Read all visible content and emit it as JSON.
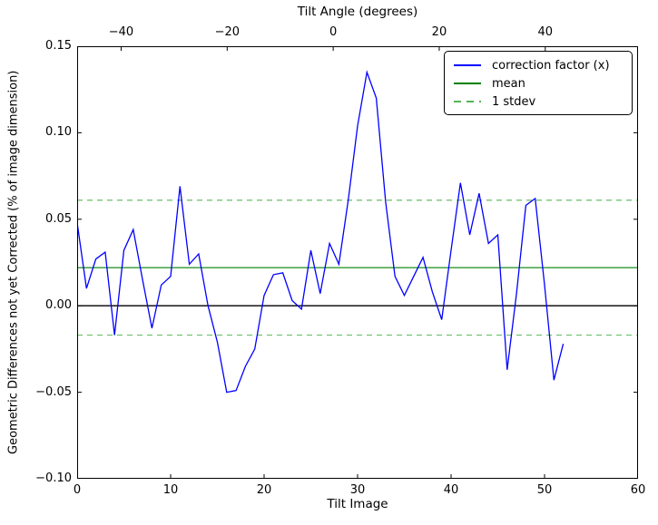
{
  "chart_data": {
    "type": "line",
    "xlabel": "Tilt Image",
    "ylabel": "Geometric Differences not yet Corrected (% of image dimension)",
    "top_xlabel": "Tilt Angle (degrees)",
    "xlim": [
      0,
      60
    ],
    "ylim": [
      -0.1,
      0.15
    ],
    "top_xlim": [
      -48.3,
      57.5
    ],
    "x_ticks": [
      0,
      10,
      20,
      30,
      40,
      50,
      60
    ],
    "x_tick_labels": [
      "0",
      "10",
      "20",
      "30",
      "40",
      "50",
      "60"
    ],
    "y_ticks": [
      0.15,
      0.1,
      0.05,
      0.0,
      -0.05,
      -0.1
    ],
    "y_tick_labels": [
      "0.15",
      "0.10",
      "0.05",
      "0.00",
      "−0.05",
      "−0.10"
    ],
    "top_ticks": [
      -40,
      -20,
      0,
      20,
      40
    ],
    "top_tick_labels": [
      "−40",
      "−20",
      "0",
      "20",
      "40"
    ],
    "grid": false,
    "legend_position": "upper right",
    "series": [
      {
        "name": "correction factor (x)",
        "color": "#0000ff",
        "style": "solid",
        "x": [
          0,
          1,
          2,
          3,
          4,
          5,
          6,
          7,
          8,
          9,
          10,
          11,
          12,
          13,
          14,
          15,
          16,
          17,
          18,
          19,
          20,
          21,
          22,
          23,
          24,
          25,
          26,
          27,
          28,
          29,
          30,
          31,
          32,
          33,
          34,
          35,
          36,
          37,
          38,
          39,
          40,
          41,
          42,
          43,
          44,
          45,
          46,
          47,
          48,
          49,
          50,
          51,
          52
        ],
        "y": [
          0.048,
          0.01,
          0.027,
          0.031,
          -0.017,
          0.032,
          0.044,
          0.015,
          -0.013,
          0.012,
          0.017,
          0.069,
          0.024,
          0.03,
          0.0,
          -0.021,
          -0.05,
          -0.049,
          -0.035,
          -0.025,
          0.006,
          0.018,
          0.019,
          0.003,
          -0.002,
          0.032,
          0.007,
          0.036,
          0.024,
          0.061,
          0.104,
          0.135,
          0.12,
          0.06,
          0.017,
          0.006,
          0.017,
          0.028,
          0.008,
          -0.008,
          0.032,
          0.071,
          0.041,
          0.065,
          0.036,
          0.041,
          -0.037,
          0.007,
          0.058,
          0.062,
          0.012,
          -0.043,
          -0.022
        ]
      },
      {
        "name": "mean",
        "color": "#008000",
        "style": "solid",
        "value": 0.022
      },
      {
        "name": "1 stdev",
        "color": "#55b555",
        "style": "dashed",
        "values": [
          0.061,
          -0.017
        ]
      }
    ],
    "zero_line": {
      "color": "#000000",
      "value": 0.0
    },
    "legend": {
      "items": [
        {
          "label": "correction factor (x)"
        },
        {
          "label": "mean"
        },
        {
          "label": "1 stdev"
        }
      ]
    }
  }
}
